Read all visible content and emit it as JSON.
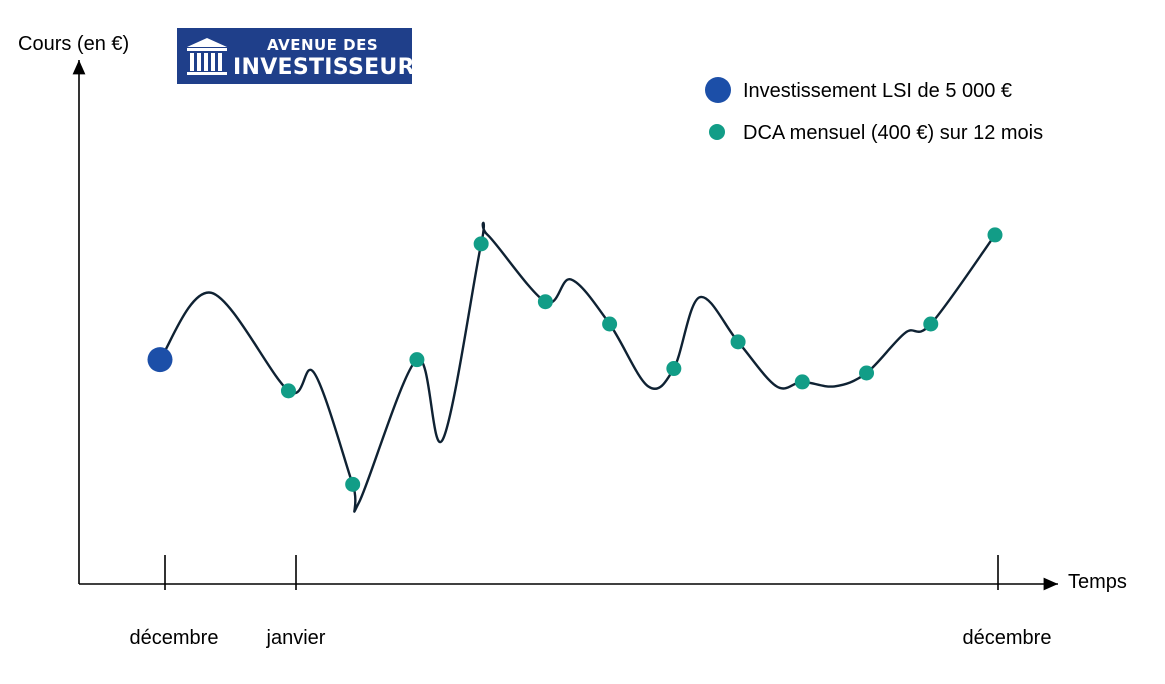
{
  "logo": {
    "line1": "AVENUE DES",
    "line2": "INVESTISSEURS",
    "color": "#1f3f8a"
  },
  "chart_data": {
    "type": "line",
    "title": "",
    "ylabel": "Cours (en €)",
    "xlabel": "Temps",
    "x_ticks": [
      "décembre",
      "janvier",
      "décembre"
    ],
    "legend": {
      "placement": "top-right",
      "entries": [
        {
          "label": "Investissement LSI de 5 000 €",
          "marker": "large-circle",
          "color": "#1c4fa8"
        },
        {
          "label": "DCA mensuel (400 €) sur 12 mois",
          "marker": "small-circle",
          "color": "#129d87"
        }
      ]
    },
    "line_color": "#0f2233",
    "lsi_point": {
      "x": 0,
      "y": 50
    },
    "dca_points": [
      {
        "x": 1,
        "y": 43
      },
      {
        "x": 1.5,
        "y": 22
      },
      {
        "x": 2,
        "y": 50
      },
      {
        "x": 2.5,
        "y": 76
      },
      {
        "x": 3,
        "y": 63
      },
      {
        "x": 3.5,
        "y": 58
      },
      {
        "x": 4,
        "y": 48
      },
      {
        "x": 4.5,
        "y": 54
      },
      {
        "x": 5,
        "y": 45
      },
      {
        "x": 5.5,
        "y": 47
      },
      {
        "x": 6,
        "y": 58
      },
      {
        "x": 6.5,
        "y": 78
      }
    ],
    "curve": [
      [
        0,
        50
      ],
      [
        0.4,
        65
      ],
      [
        1,
        43
      ],
      [
        1.2,
        47
      ],
      [
        1.5,
        22
      ],
      [
        1.55,
        18
      ],
      [
        2,
        50
      ],
      [
        2.2,
        32
      ],
      [
        2.5,
        76
      ],
      [
        2.55,
        78
      ],
      [
        3,
        63
      ],
      [
        3.2,
        68
      ],
      [
        3.5,
        58
      ],
      [
        3.8,
        44
      ],
      [
        4,
        48
      ],
      [
        4.2,
        64
      ],
      [
        4.5,
        54
      ],
      [
        4.8,
        44
      ],
      [
        5,
        45
      ],
      [
        5.25,
        44
      ],
      [
        5.5,
        47
      ],
      [
        5.8,
        56
      ],
      [
        6,
        58
      ],
      [
        6.5,
        78
      ]
    ],
    "xlim": [
      -0.05,
      6.5
    ],
    "ylim": [
      -25,
      125
    ],
    "grid": false
  }
}
